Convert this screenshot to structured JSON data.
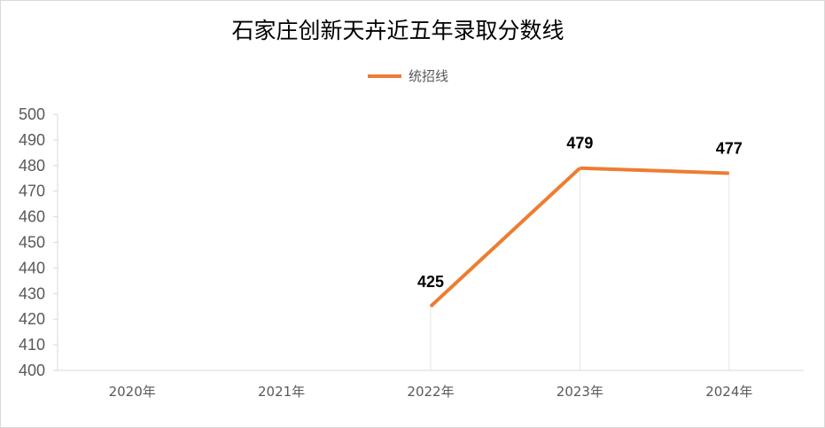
{
  "chart_data": {
    "type": "line",
    "title": "石家庄创新天卉近五年录取分数线",
    "categories": [
      "2020年",
      "2021年",
      "2022年",
      "2023年",
      "2024年"
    ],
    "series": [
      {
        "name": "统招线",
        "values": [
          null,
          null,
          425,
          479,
          477
        ],
        "color": "#ED7D31"
      }
    ],
    "ylim": [
      400,
      500
    ],
    "yticks": [
      400,
      410,
      420,
      430,
      440,
      450,
      460,
      470,
      480,
      490,
      500
    ],
    "legend_position": "top-center",
    "grid": false,
    "drop_lines": true
  }
}
